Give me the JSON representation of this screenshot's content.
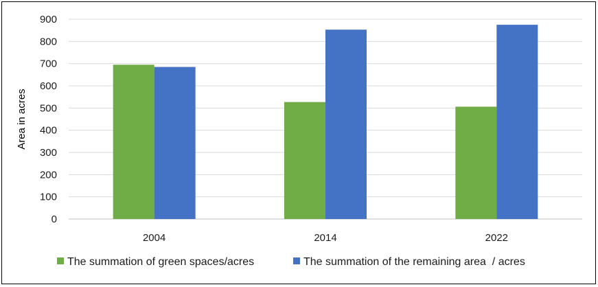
{
  "chart_data": {
    "type": "bar",
    "title": "",
    "xlabel": "",
    "ylabel": "Area in acres",
    "ylim": [
      0,
      900
    ],
    "yticks": [
      0,
      100,
      200,
      300,
      400,
      500,
      600,
      700,
      800,
      900
    ],
    "categories": [
      "2004",
      "2014",
      "2022"
    ],
    "series": [
      {
        "name": "The summation of green spaces/acres",
        "color": "#70ad47",
        "values": [
          695,
          527,
          506
        ]
      },
      {
        "name": "The summation of the remaining area  / acres",
        "color": "#4472c4",
        "values": [
          685,
          853,
          875
        ]
      }
    ],
    "grid": true,
    "legend_position": "bottom"
  }
}
